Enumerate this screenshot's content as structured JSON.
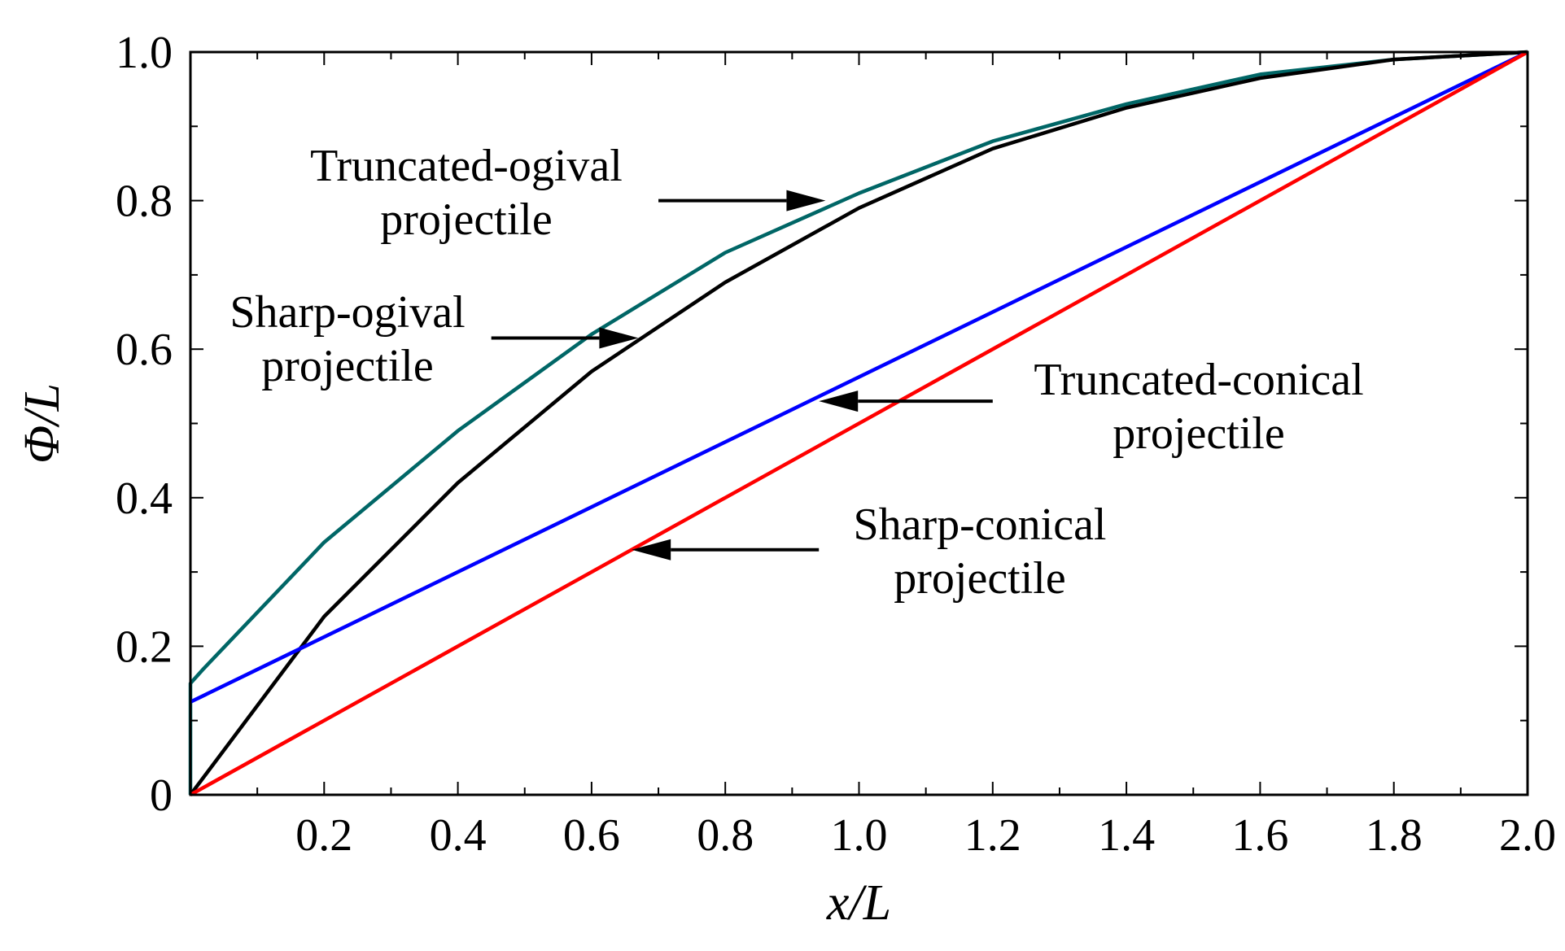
{
  "chart_data": {
    "type": "line",
    "title": "",
    "xlabel": "x/L",
    "ylabel": "Φ/L",
    "xlim": [
      0,
      2.0
    ],
    "ylim": [
      0,
      1.0
    ],
    "x_ticks": [
      0.2,
      0.4,
      0.6,
      0.8,
      1.0,
      1.2,
      1.4,
      1.6,
      1.8,
      2.0
    ],
    "x_tick_labels": [
      "0.2",
      "0.4",
      "0.6",
      "0.8",
      "1.0",
      "1.2",
      "1.4",
      "1.6",
      "1.8",
      "2.0"
    ],
    "y_ticks": [
      0,
      0.2,
      0.4,
      0.6,
      0.8,
      1.0
    ],
    "y_tick_labels": [
      "0",
      "0.2",
      "0.4",
      "0.6",
      "0.8",
      "1.0"
    ],
    "grid": false,
    "legend": "none",
    "series": [
      {
        "name": "Truncated-ogival projectile",
        "color": "#006666",
        "x": [
          0,
          0,
          0.02,
          0.2,
          0.4,
          0.6,
          0.8,
          1.0,
          1.2,
          1.4,
          1.6,
          1.8,
          2.0
        ],
        "y": [
          0,
          0.15,
          0.17,
          0.34,
          0.49,
          0.62,
          0.73,
          0.81,
          0.88,
          0.93,
          0.97,
          0.99,
          1.0
        ]
      },
      {
        "name": "Sharp-ogival projectile",
        "color": "#000000",
        "x": [
          0,
          0.2,
          0.4,
          0.6,
          0.8,
          1.0,
          1.2,
          1.4,
          1.6,
          1.8,
          2.0
        ],
        "y": [
          0,
          0.24,
          0.42,
          0.57,
          0.69,
          0.79,
          0.87,
          0.925,
          0.965,
          0.99,
          1.0
        ]
      },
      {
        "name": "Truncated-conical projectile",
        "color": "#0000ff",
        "x": [
          0,
          2.0
        ],
        "y": [
          0.125,
          1.0
        ]
      },
      {
        "name": "Sharp-conical projectile",
        "color": "#ff0000",
        "x": [
          0,
          2.0
        ],
        "y": [
          0,
          1.0
        ]
      }
    ],
    "annotations": [
      {
        "line1": "Truncated-ogival",
        "line2": "projectile",
        "arrow_from": [
          0.7,
          0.8
        ],
        "arrow_to": [
          0.95,
          0.8
        ]
      },
      {
        "line1": "Sharp-ogival",
        "line2": "projectile",
        "arrow_from": [
          0.45,
          0.615
        ],
        "arrow_to": [
          0.67,
          0.615
        ]
      },
      {
        "line1": "Truncated-conical",
        "line2": "projectile",
        "arrow_from": [
          1.2,
          0.53
        ],
        "arrow_to": [
          0.94,
          0.53
        ]
      },
      {
        "line1": "Sharp-conical",
        "line2": "projectile",
        "arrow_from": [
          0.94,
          0.33
        ],
        "arrow_to": [
          0.66,
          0.33
        ]
      }
    ]
  }
}
